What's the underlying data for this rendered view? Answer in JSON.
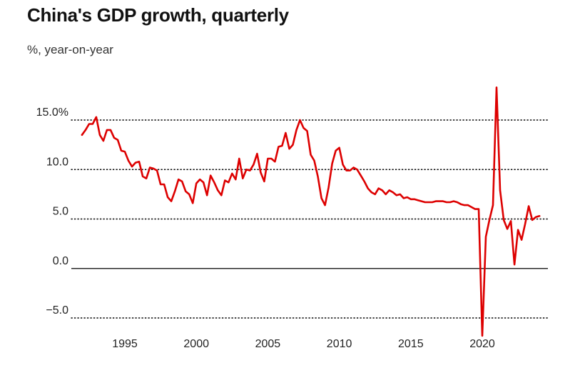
{
  "title": "China's GDP growth, quarterly",
  "subtitle": "%, year-on-year",
  "colors": {
    "line": "#dd0000",
    "grid": "#000000",
    "text": "#222222"
  },
  "chart_data": {
    "type": "line",
    "title": "China's GDP growth, quarterly",
    "subtitle": "%, year-on-year",
    "xlabel": "",
    "ylabel": "",
    "xlim": [
      1991.5,
      2024.75
    ],
    "ylim": [
      -6.2,
      18.5
    ],
    "y_ticks": [
      15.0,
      10.0,
      5.0,
      0.0,
      -5.0
    ],
    "y_tick_labels": [
      "15.0%",
      "10.0",
      "5.0",
      "0.0",
      "−5.0"
    ],
    "x_ticks": [
      1995,
      2000,
      2005,
      2010,
      2015,
      2020
    ],
    "x_tick_labels": [
      "1995",
      "2000",
      "2005",
      "2010",
      "2015",
      "2020"
    ],
    "grid": "horizontal dotted, solid baseline at 0",
    "legend": "none",
    "series": [
      {
        "x": [
          1992.0,
          1992.25,
          1992.5,
          1992.75,
          1993.0,
          1993.25,
          1993.5,
          1993.75,
          1994.0,
          1994.25,
          1994.5,
          1994.75,
          1995.0,
          1995.25,
          1995.5,
          1995.75,
          1996.0,
          1996.25,
          1996.5,
          1996.75,
          1997.0,
          1997.25,
          1997.5,
          1997.75,
          1998.0,
          1998.25,
          1998.5,
          1998.75,
          1999.0,
          1999.25,
          1999.5,
          1999.75,
          2000.0,
          2000.25,
          2000.5,
          2000.75,
          2001.0,
          2001.25,
          2001.5,
          2001.75,
          2002.0,
          2002.25,
          2002.5,
          2002.75,
          2003.0,
          2003.25,
          2003.5,
          2003.75,
          2004.0,
          2004.25,
          2004.5,
          2004.75,
          2005.0,
          2005.25,
          2005.5,
          2005.75,
          2006.0,
          2006.25,
          2006.5,
          2006.75,
          2007.0,
          2007.25,
          2007.5,
          2007.75,
          2008.0,
          2008.25,
          2008.5,
          2008.75,
          2009.0,
          2009.25,
          2009.5,
          2009.75,
          2010.0,
          2010.25,
          2010.5,
          2010.75,
          2011.0,
          2011.25,
          2011.5,
          2011.75,
          2012.0,
          2012.25,
          2012.5,
          2012.75,
          2013.0,
          2013.25,
          2013.5,
          2013.75,
          2014.0,
          2014.25,
          2014.5,
          2014.75,
          2015.0,
          2015.25,
          2015.5,
          2015.75,
          2016.0,
          2016.25,
          2016.5,
          2016.75,
          2017.0,
          2017.25,
          2017.5,
          2017.75,
          2018.0,
          2018.25,
          2018.5,
          2018.75,
          2019.0,
          2019.25,
          2019.5,
          2019.75,
          2020.0,
          2020.25,
          2020.5,
          2020.75,
          2021.0,
          2021.25,
          2021.5,
          2021.75,
          2022.0,
          2022.25,
          2022.5,
          2022.75,
          2023.0,
          2023.25,
          2023.5,
          2023.75,
          2024.0
        ],
        "values": [
          13.5,
          14.0,
          14.6,
          14.6,
          15.3,
          13.5,
          12.9,
          14.0,
          14.0,
          13.2,
          13.0,
          11.9,
          11.8,
          10.9,
          10.3,
          10.7,
          10.8,
          9.3,
          9.1,
          10.2,
          10.1,
          9.9,
          8.5,
          8.5,
          7.2,
          6.8,
          7.8,
          9.0,
          8.8,
          7.8,
          7.5,
          6.6,
          8.6,
          9.0,
          8.7,
          7.4,
          9.4,
          8.7,
          7.9,
          7.4,
          8.9,
          8.7,
          9.6,
          9.0,
          11.1,
          9.1,
          10.0,
          9.9,
          10.5,
          11.6,
          9.7,
          8.8,
          11.1,
          11.1,
          10.8,
          12.3,
          12.4,
          13.7,
          12.1,
          12.5,
          14.0,
          15.0,
          14.2,
          13.9,
          11.5,
          10.9,
          9.3,
          7.1,
          6.4,
          8.2,
          10.6,
          11.9,
          12.2,
          10.5,
          9.9,
          9.9,
          10.2,
          10.0,
          9.4,
          8.8,
          8.1,
          7.7,
          7.5,
          8.1,
          7.9,
          7.5,
          7.9,
          7.7,
          7.4,
          7.5,
          7.1,
          7.2,
          7.0,
          7.0,
          6.9,
          6.8,
          6.7,
          6.7,
          6.7,
          6.8,
          6.8,
          6.8,
          6.7,
          6.7,
          6.8,
          6.7,
          6.5,
          6.4,
          6.4,
          6.2,
          6.0,
          6.0,
          -6.8,
          3.2,
          4.9,
          6.4,
          18.3,
          7.9,
          4.9,
          4.0,
          4.8,
          0.4,
          3.9,
          2.9,
          4.5,
          6.3,
          4.9,
          5.2,
          5.3
        ]
      }
    ]
  }
}
